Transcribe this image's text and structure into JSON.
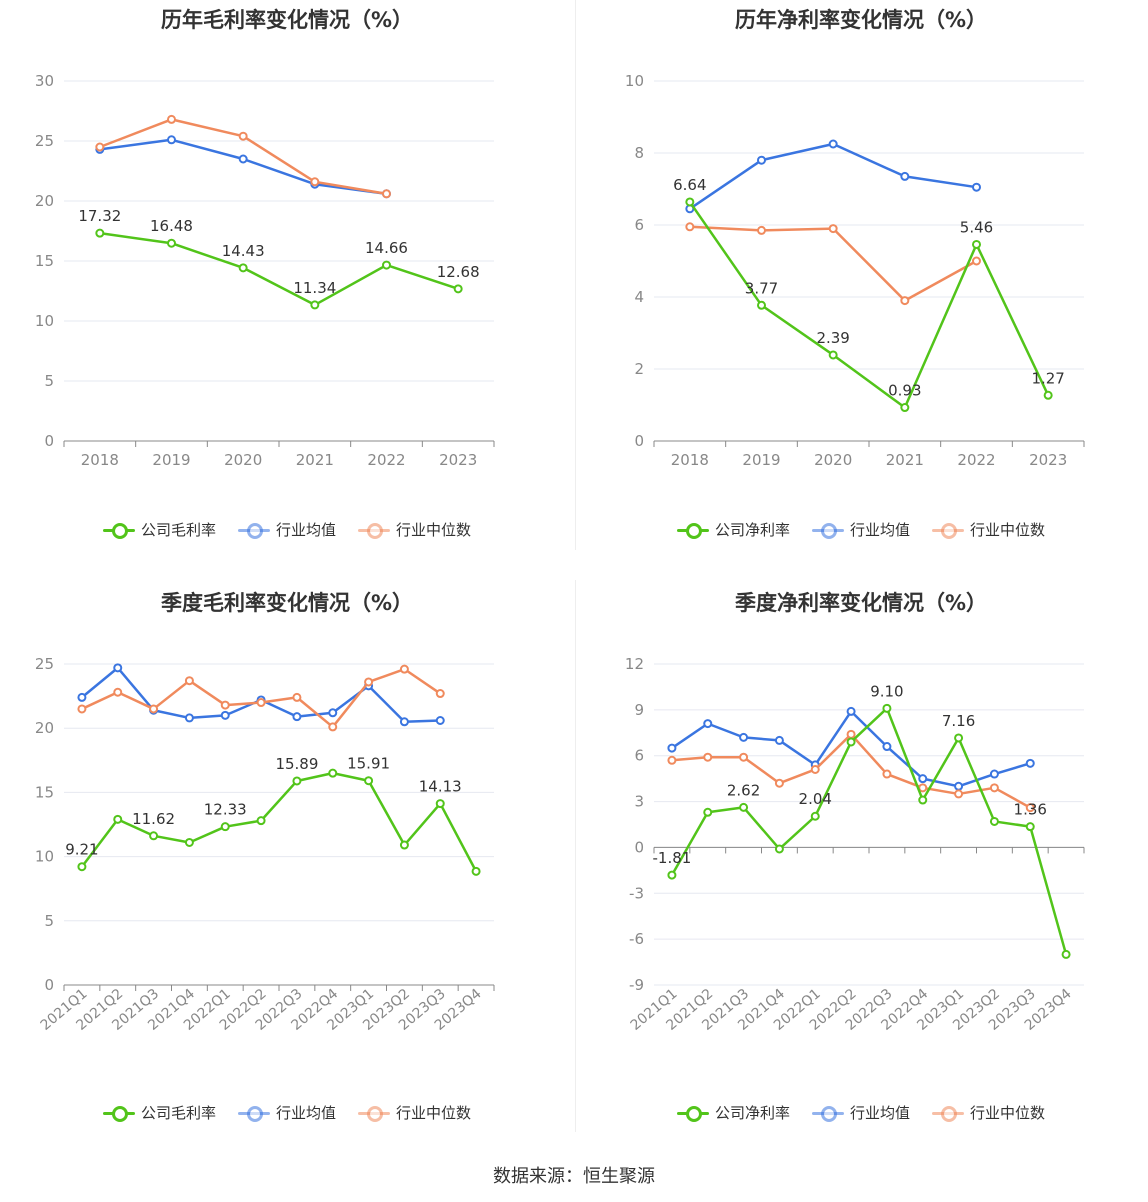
{
  "source": "数据来源：恒生聚源",
  "colors": {
    "company": "#52c41a",
    "avg": "#3a75e0",
    "median": "#f08a5d",
    "grid": "#e6e8f0",
    "axis": "#888888",
    "label": "#333333"
  },
  "charts": [
    {
      "title": "历年毛利率变化情况（%）",
      "legend": [
        "公司毛利率",
        "行业均值",
        "行业中位数"
      ],
      "chart_data": {
        "type": "line",
        "categories": [
          "2018",
          "2019",
          "2020",
          "2021",
          "2022",
          "2023"
        ],
        "ylim": [
          0,
          30
        ],
        "yticks": [
          "0",
          "5",
          "10",
          "15",
          "20",
          "25",
          "30"
        ],
        "tick_values": [
          0,
          5,
          10,
          15,
          20,
          25,
          30
        ],
        "series": [
          {
            "name": "公司毛利率",
            "values": [
              17.32,
              16.48,
              14.43,
              11.34,
              14.66,
              12.68
            ],
            "labels": [
              "17.32",
              "16.48",
              "14.43",
              "11.34",
              "14.66",
              "12.68"
            ]
          },
          {
            "name": "行业均值",
            "values": [
              24.3,
              25.1,
              23.5,
              21.4,
              20.6,
              null
            ]
          },
          {
            "name": "行业中位数",
            "values": [
              24.5,
              26.8,
              25.4,
              21.6,
              20.6,
              null
            ]
          }
        ]
      }
    },
    {
      "title": "历年净利率变化情况（%）",
      "legend": [
        "公司净利率",
        "行业均值",
        "行业中位数"
      ],
      "chart_data": {
        "type": "line",
        "categories": [
          "2018",
          "2019",
          "2020",
          "2021",
          "2022",
          "2023"
        ],
        "ylim": [
          0,
          10
        ],
        "yticks": [
          "0",
          "2",
          "4",
          "6",
          "8",
          "10"
        ],
        "tick_values": [
          0,
          2,
          4,
          6,
          8,
          10
        ],
        "series": [
          {
            "name": "公司净利率",
            "values": [
              6.64,
              3.77,
              2.39,
              0.93,
              5.46,
              1.27
            ],
            "labels": [
              "6.64",
              "3.77",
              "2.39",
              "0.93",
              "5.46",
              "1.27"
            ]
          },
          {
            "name": "行业均值",
            "values": [
              6.45,
              7.8,
              8.25,
              7.35,
              7.05,
              null
            ]
          },
          {
            "name": "行业中位数",
            "values": [
              5.95,
              5.85,
              5.9,
              3.9,
              5.0,
              null
            ]
          }
        ]
      }
    },
    {
      "title": "季度毛利率变化情况（%）",
      "legend": [
        "公司毛利率",
        "行业均值",
        "行业中位数"
      ],
      "chart_data": {
        "type": "line",
        "categories": [
          "2021Q1",
          "2021Q2",
          "2021Q3",
          "2021Q4",
          "2022Q1",
          "2022Q2",
          "2022Q3",
          "2022Q4",
          "2023Q1",
          "2023Q2",
          "2023Q3",
          "2023Q4"
        ],
        "ylim": [
          0,
          25
        ],
        "yticks": [
          "0",
          "5",
          "10",
          "15",
          "20",
          "25"
        ],
        "tick_values": [
          0,
          5,
          10,
          15,
          20,
          25
        ],
        "series": [
          {
            "name": "公司毛利率",
            "values": [
              9.21,
              12.9,
              11.62,
              11.1,
              12.33,
              12.8,
              15.89,
              16.5,
              15.91,
              10.9,
              14.13,
              8.85
            ],
            "labels": [
              "9.21",
              "",
              "11.62",
              "",
              "12.33",
              "",
              "15.89",
              "",
              "15.91",
              "",
              "14.13",
              ""
            ]
          },
          {
            "name": "行业均值",
            "values": [
              22.4,
              24.7,
              21.4,
              20.8,
              21.0,
              22.2,
              20.9,
              21.2,
              23.3,
              20.5,
              20.6,
              null
            ]
          },
          {
            "name": "行业中位数",
            "values": [
              21.5,
              22.8,
              21.5,
              23.7,
              21.8,
              22.0,
              22.4,
              20.1,
              23.6,
              24.6,
              22.7,
              null
            ]
          }
        ]
      }
    },
    {
      "title": "季度净利率变化情况（%）",
      "legend": [
        "公司净利率",
        "行业均值",
        "行业中位数"
      ],
      "chart_data": {
        "type": "line",
        "categories": [
          "2021Q1",
          "2021Q2",
          "2021Q3",
          "2021Q4",
          "2022Q1",
          "2022Q2",
          "2022Q3",
          "2022Q4",
          "2023Q1",
          "2023Q2",
          "2023Q3",
          "2023Q4"
        ],
        "ylim": [
          -9,
          12
        ],
        "yticks": [
          "-9",
          "-6",
          "-3",
          "0",
          "3",
          "6",
          "9",
          "12"
        ],
        "tick_values": [
          -9,
          -6,
          -3,
          0,
          3,
          6,
          9,
          12
        ],
        "series": [
          {
            "name": "公司净利率",
            "values": [
              -1.81,
              2.3,
              2.62,
              -0.1,
              2.04,
              6.9,
              9.1,
              3.1,
              7.16,
              1.7,
              1.36,
              -7.0
            ],
            "labels": [
              "-1.81",
              "",
              "2.62",
              "",
              "2.04",
              "",
              "9.10",
              "",
              "7.16",
              "",
              "1.36",
              ""
            ]
          },
          {
            "name": "行业均值",
            "values": [
              6.5,
              8.1,
              7.2,
              7.0,
              5.4,
              8.9,
              6.6,
              4.5,
              4.0,
              4.8,
              5.5,
              null
            ]
          },
          {
            "name": "行业中位数",
            "values": [
              5.7,
              5.9,
              5.9,
              4.2,
              5.1,
              7.4,
              4.8,
              3.9,
              3.5,
              3.9,
              2.6,
              null
            ]
          }
        ]
      }
    }
  ]
}
